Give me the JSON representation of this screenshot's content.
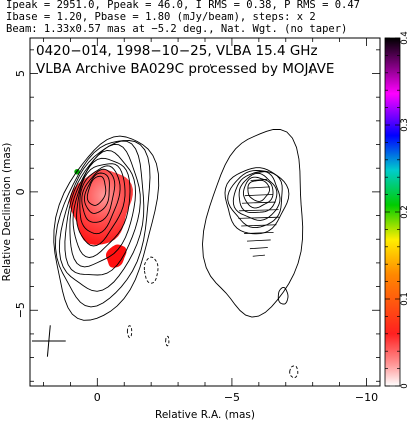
{
  "header": {
    "line1": "Ipeak = 2951.0, Ppeak = 46.0, I RMS = 0.38, P RMS = 0.47",
    "line2": "Ibase = 1.20, Pbase = 1.80 (mJy/beam), steps: x 2",
    "line3": "Beam: 1.33x0.57 mas at −5.2 deg., Nat. Wgt. (no taper)"
  },
  "chart_data": {
    "type": "contour",
    "title": "0420−014, 1998−10−25, VLBA 15.4 GHz",
    "subtitle": "VLBA Archive BA029C processed by MOJAVE",
    "xlabel": "Relative R.A. (mas)",
    "ylabel": "Relative Declination (mas)",
    "xlim": [
      2.5,
      -10.5
    ],
    "ylim": [
      -8.2,
      6.5
    ],
    "x_ticks": [
      0,
      -5,
      -10
    ],
    "x_tick_labels": [
      "0",
      "−5",
      "−10"
    ],
    "y_ticks": [
      5,
      0,
      -5
    ],
    "y_tick_labels": [
      "5",
      "0",
      "−5"
    ],
    "colorbar": {
      "range": [
        0,
        0.4
      ],
      "ticks": [
        0,
        0.1,
        0.2,
        0.3,
        0.4
      ],
      "tick_labels": [
        "0",
        "0.1",
        "0.2",
        "0.3",
        "0.4"
      ],
      "colors": [
        "#ffffff",
        "#ff6666",
        "#ff0000",
        "#ff8800",
        "#ffff00",
        "#00dd00",
        "#00ccdd",
        "#0000ff",
        "#ff00ff",
        "#000000"
      ]
    },
    "core_offset_x": 6.0,
    "contour_levels_count": 11,
    "beam": {
      "major_mas": 1.33,
      "minor_mas": 0.57,
      "pa_deg": -5.2,
      "center": [
        1.8,
        -6.3
      ]
    }
  }
}
